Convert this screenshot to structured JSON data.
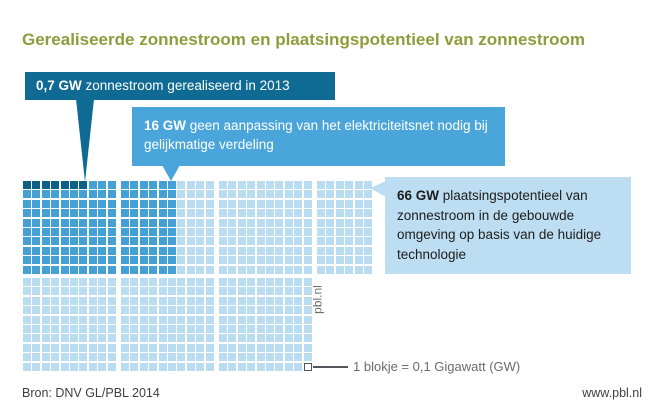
{
  "title": "Gerealiseerde zonnestroom en plaatsingspotentieel van zonnestroom",
  "callouts": [
    {
      "value": "0,7 GW",
      "text": " zonnestroom gerealiseerd in 2013"
    },
    {
      "value": "16 GW",
      "text": " geen aanpassing van het elektriciteitsnet nodig bij gelijkmatige verdeling"
    },
    {
      "value": "66 GW",
      "text": " plaatsingspotentieel van zonnestroom in de gebouwde omgeving op basis van de huidige technologie"
    }
  ],
  "legend": {
    "label": "1 blokje = 0,1 Gigawatt (GW)"
  },
  "watermark": "pbl.nl",
  "footer": {
    "source": "Bron: DNV GL/PBL 2014",
    "site": "www.pbl.nl"
  },
  "colors": {
    "title_olive": "#8e9c3c",
    "dark_teal_box": "#0f6a94",
    "dark_teal_cell": "#0c5f85",
    "medium_blue_box": "#4aa5da",
    "medium_blue_cell": "#44a0d5",
    "light_blue_box": "#bdddf2",
    "light_blue_cell": "#badcf1",
    "legend_gray": "#53565a"
  },
  "chart_data": {
    "type": "waffle",
    "title": "Gerealiseerde zonnestroom en plaatsingspotentieel van zonnestroom",
    "unit_per_block_gw": 0.1,
    "unit_label": "1 blokje = 0,1 Gigawatt (GW)",
    "total_blocks": 660,
    "series": [
      {
        "name": "zonnestroom gerealiseerd in 2013",
        "value_gw": 0.7,
        "blocks": 7,
        "color": "#0c5f85"
      },
      {
        "name": "geen aanpassing van het elektriciteitsnet nodig bij gelijkmatige verdeling",
        "value_gw": 16,
        "blocks": 160,
        "color": "#44a0d5"
      },
      {
        "name": "plaatsingspotentieel van zonnestroom in de gebouwde omgeving op basis van de huidige technologie",
        "value_gw": 66,
        "blocks": 660,
        "color": "#badcf1"
      }
    ],
    "layout": {
      "rows_per_group": 10,
      "top_band_group_cols": [
        10,
        10,
        10,
        6
      ],
      "bottom_band_group_cols": [
        10,
        10,
        10
      ],
      "legend_marker_position": "last block of bottom-right group"
    }
  }
}
